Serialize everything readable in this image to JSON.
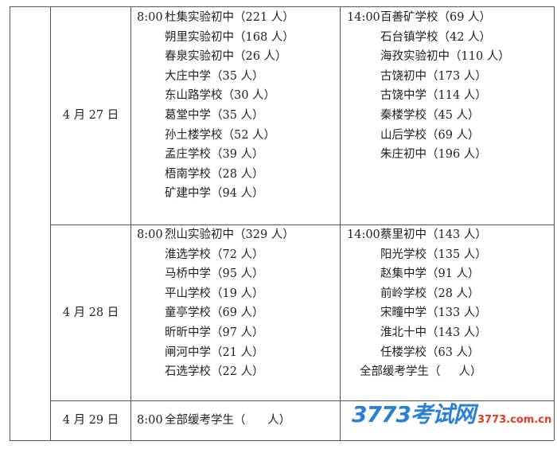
{
  "rows": [
    {
      "date": "4 月 27 日",
      "morning": {
        "time": "8:00",
        "schools": [
          "杜集实验初中（221 人）",
          "朔里实验初中（168 人）",
          "春泉实验初中（26 人）",
          "大庄中学（35 人）",
          "东山路学校（30 人）",
          "葛堂中学（35 人）",
          "孙土楼学校（52 人）",
          "孟庄学校（39 人）",
          "梧南学校（28 人）",
          "矿建中学（94 人）"
        ]
      },
      "afternoon": {
        "time": "14:00",
        "schools": [
          "百善矿学校（69 人）",
          "石台镇学校（42 人）",
          "海孜实验初中（110 人）",
          "古饶初中（173 人）",
          "古饶中学（114 人）",
          "秦楼学校（45 人）",
          "山后学校（69 人）",
          "朱庄初中（196 人）"
        ]
      }
    },
    {
      "date": "4 月 28 日",
      "morning": {
        "time": "8:00",
        "schools": [
          "烈山实验初中（329 人）",
          "淮选学校（72 人）",
          "马桥中学（95 人）",
          "平山学校（19 人）",
          "童亭学校（69 人）",
          "昕昕中学（97 人）",
          "闸河中学（21 人）",
          "石选学校（22 人）"
        ]
      },
      "afternoon": {
        "time": "14:00",
        "schools": [
          "蔡里初中（143 人）",
          "阳光学校（135 人）",
          "赵集中学（91 人）",
          "前岭学校（28 人）",
          "宋疃中学（133 人）",
          "淮北十中（143 人）",
          "任楼学校（63 人）"
        ],
        "note": "全部缓考学生（     人）"
      }
    },
    {
      "date": "4 月 29 日",
      "morning": {
        "time": "8:00",
        "schools": [
          "全部缓考学生（      人）"
        ]
      }
    }
  ],
  "watermark": {
    "logo": "3773考试网",
    "url": "3773.com.cn"
  }
}
